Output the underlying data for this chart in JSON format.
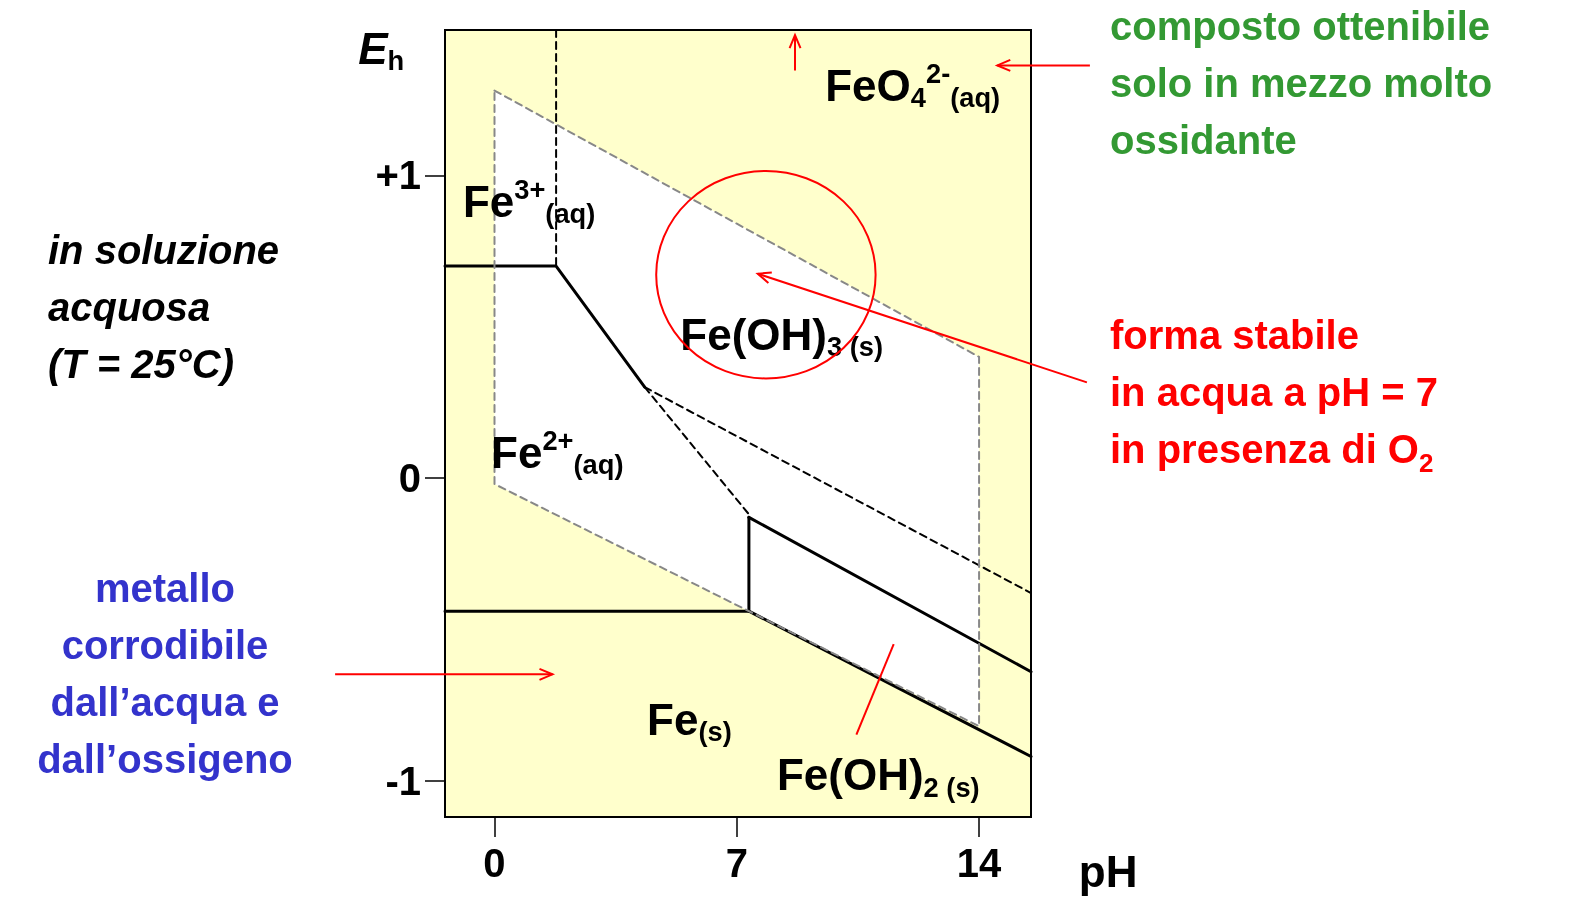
{
  "chart_data": {
    "type": "line",
    "xlabel": "pH",
    "ylabel": "E$_{h}$",
    "xlim": [
      -1.43,
      15.5
    ],
    "ylim": [
      -1.12,
      1.48
    ],
    "xticks": [
      0,
      7,
      14
    ],
    "yticks": [
      {
        "value": 1,
        "label": "+1"
      },
      0,
      -1
    ],
    "grid": false,
    "marker": "none",
    "series": [
      {
        "color": "#000000",
        "line_style": "solid",
        "x": [
          -1.43,
          1.78,
          4.34
        ],
        "values": [
          0.7,
          0.7,
          0.3
        ]
      },
      {
        "color": "#000000",
        "line_style": "dashed",
        "x": [
          4.34,
          7.35
        ],
        "values": [
          0.3,
          -0.12
        ]
      },
      {
        "color": "#000000",
        "line_style": "dashed",
        "x": [
          4.34,
          15.5
        ],
        "values": [
          0.3,
          -0.38
        ]
      },
      {
        "color": "#000000",
        "line_style": "solid",
        "x": [
          7.35,
          15.5
        ],
        "values": [
          -0.13,
          -0.64
        ]
      },
      {
        "color": "#000000",
        "line_style": "solid",
        "x": [
          7.35,
          7.35
        ],
        "values": [
          -0.13,
          -0.44
        ]
      },
      {
        "color": "#000000",
        "line_style": "solid",
        "x": [
          -1.43,
          7.35,
          15.5
        ],
        "values": [
          -0.44,
          -0.44,
          -0.92
        ]
      },
      {
        "color": "#000000",
        "line_style": "dashed",
        "x": [
          1.78,
          1.78
        ],
        "values": [
          1.48,
          0.7
        ]
      },
      {
        "type": "area",
        "color": "#888888",
        "line_style": "dashed",
        "x": [
          0,
          14,
          14,
          0,
          0
        ],
        "values": [
          1.28,
          0.4,
          -0.82,
          -0.02,
          1.28
        ]
      }
    ],
    "annotations": [
      "Fe$^{3+}$$_{(aq)}$",
      "FeO$_{4}$$^{2-}$$_{(aq)}$",
      "Fe(OH)$_{3 (s)}$",
      "Fe$^{2+}$$_{(aq)}$",
      "Fe$_{(s)}$",
      "Fe(OH)$_{2 (s)}$",
      "composto ottenibile\nsolo in mezzo molto\nossidante",
      "in soluzione\nacquosa\n(T = 25°C)",
      "forma stabile\nin acqua a pH = 7\nin presenza di O$_{2}$",
      "metallo\ncorrodibile\ndall’acqua e\ndall’ossigeno"
    ]
  }
}
